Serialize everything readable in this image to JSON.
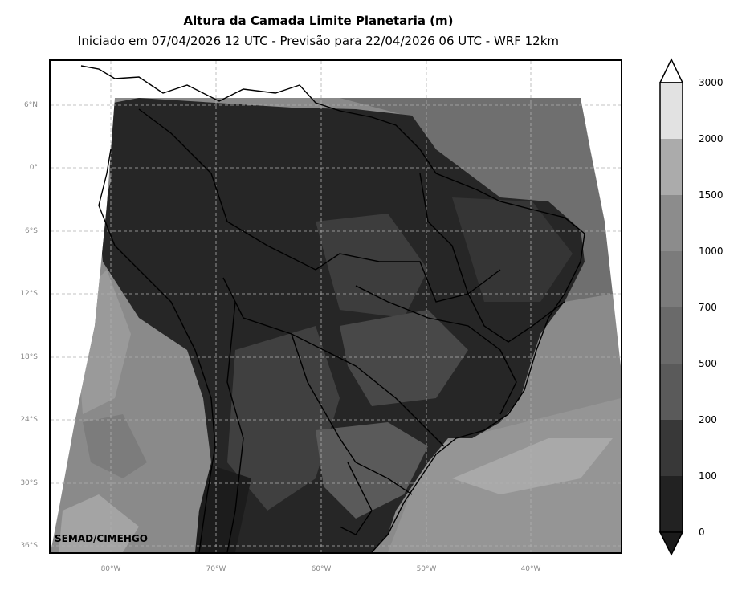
{
  "header": {
    "title": "Altura da Camada Limite Planetaria (m)",
    "subtitle": "Iniciado em 07/04/2026 12 UTC - Previsão para 22/04/2026 06 UTC - WRF 12km"
  },
  "map": {
    "lat_labels": [
      "6°N",
      "0°",
      "6°S",
      "12°S",
      "18°S",
      "24°S",
      "30°S",
      "36°S"
    ],
    "lon_labels": [
      "80°W",
      "70°W",
      "60°W",
      "50°W",
      "40°W"
    ],
    "watermark": "SEMAD/CIMEHGO"
  },
  "colorbar": {
    "labels": [
      "3000",
      "2000",
      "1500",
      "1000",
      "700",
      "500",
      "200",
      "100",
      "0"
    ],
    "colors": [
      "#e2e2e2",
      "#ababab",
      "#8c8c8c",
      "#7b7b7b",
      "#6a6a6a",
      "#5a5a5a",
      "#383838",
      "#222222"
    ],
    "under_color": "#1b1b1b",
    "over_color": "#ffffff"
  }
}
